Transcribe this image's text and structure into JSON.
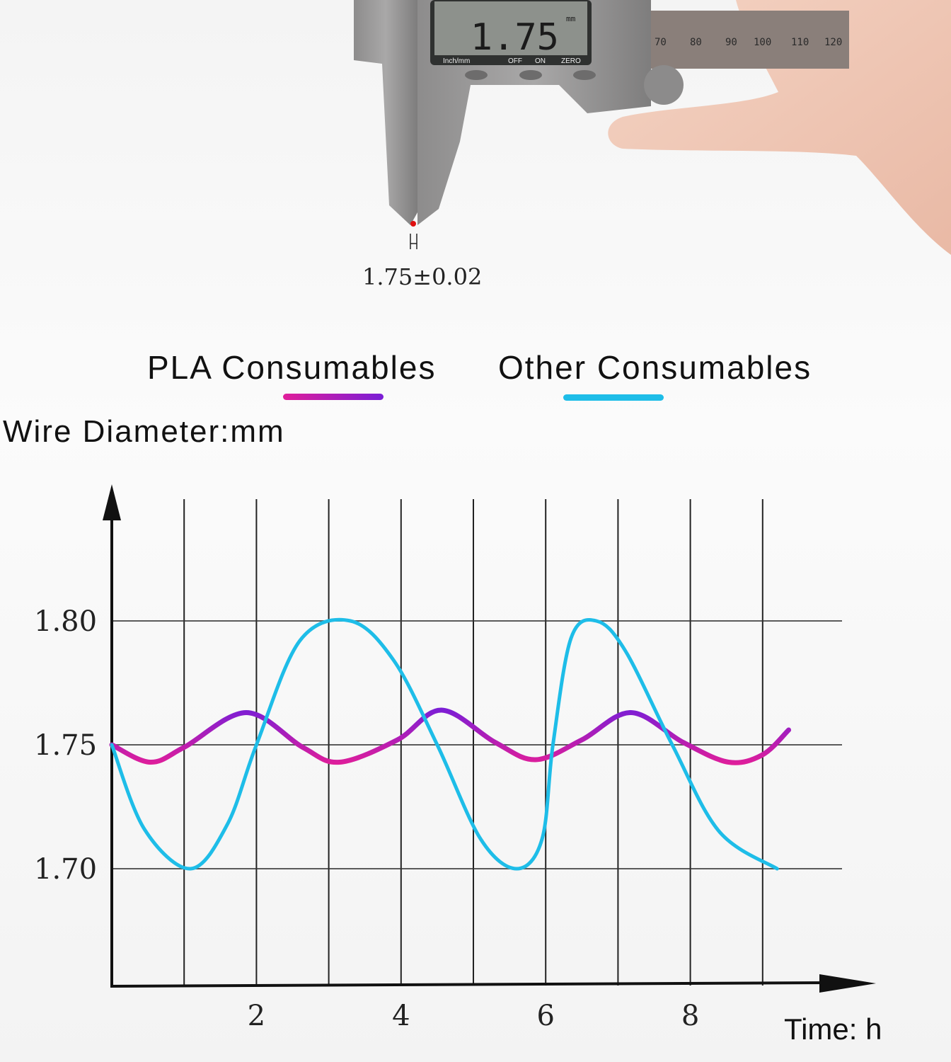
{
  "photo": {
    "display_reading": "1.75",
    "display_unit": "mm",
    "buttons": [
      "Inch/mm",
      "OFF",
      "ON",
      "ZERO"
    ],
    "scale_numbers": [
      "70",
      "80",
      "90",
      "100",
      "110",
      "120"
    ],
    "tolerance_label": "1.75±0.02"
  },
  "chart_data": {
    "type": "line",
    "title": "",
    "ylabel": "Wire Diameter:mm",
    "xlabel": "Time: h",
    "xlim": [
      0,
      10
    ],
    "ylim": [
      1.65,
      1.85
    ],
    "x_ticks": [
      "2",
      "4",
      "6",
      "8"
    ],
    "x_tick_values": [
      2,
      4,
      6,
      8
    ],
    "y_ticks": [
      "1.80",
      "1.75",
      "1.70"
    ],
    "y_tick_values": [
      1.8,
      1.75,
      1.7
    ],
    "grid": true,
    "legend_placement": "top",
    "series": [
      {
        "name": "PLA Consumables",
        "color": "#e01e9a",
        "color_end": "#7a1ed6",
        "x": [
          0,
          0.53,
          1.0,
          1.86,
          2.64,
          3.15,
          3.95,
          4.56,
          5.3,
          5.86,
          6.5,
          7.18,
          7.9,
          8.53,
          9.0,
          9.36
        ],
        "y": [
          1.75,
          1.743,
          1.749,
          1.763,
          1.749,
          1.743,
          1.752,
          1.764,
          1.751,
          1.744,
          1.752,
          1.763,
          1.751,
          1.743,
          1.746,
          1.756
        ]
      },
      {
        "name": "Other Consumables",
        "color": "#1ebde8",
        "x": [
          0,
          0.45,
          1.09,
          1.6,
          2.0,
          2.6,
          3.3,
          3.9,
          4.5,
          5.1,
          5.6,
          5.95,
          6.1,
          6.35,
          6.7,
          7.1,
          7.75,
          8.4,
          9.2
        ],
        "y": [
          1.75,
          1.716,
          1.7,
          1.718,
          1.75,
          1.792,
          1.8,
          1.784,
          1.75,
          1.712,
          1.7,
          1.712,
          1.75,
          1.793,
          1.8,
          1.788,
          1.75,
          1.715,
          1.7
        ]
      }
    ]
  }
}
